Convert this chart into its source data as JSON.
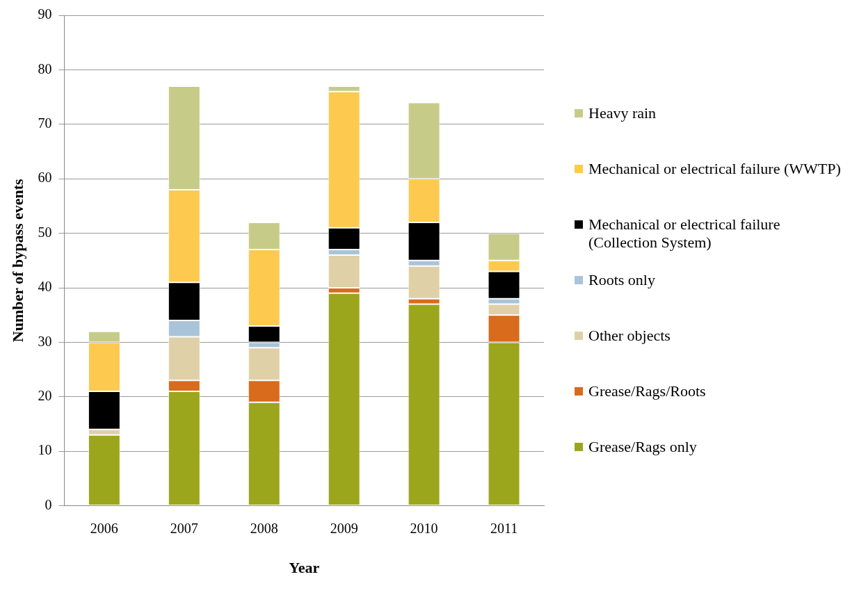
{
  "chart_data": {
    "type": "bar",
    "xlabel": "Year",
    "ylabel": "Number of bypass events",
    "categories": [
      "2006",
      "2007",
      "2008",
      "2009",
      "2010",
      "2011"
    ],
    "stacked": true,
    "ylim": [
      0,
      90
    ],
    "yticks": [
      0,
      10,
      20,
      30,
      40,
      50,
      60,
      70,
      80,
      90
    ],
    "grid": "y",
    "legend": "right",
    "series": [
      {
        "name": "Grease/Rags only",
        "color": "#9ca61c",
        "values": [
          13,
          21,
          19,
          39,
          37,
          30
        ]
      },
      {
        "name": "Grease/Rags/Roots",
        "color": "#d96b1c",
        "values": [
          0,
          2,
          4,
          1,
          1,
          5
        ]
      },
      {
        "name": "Other objects",
        "color": "#e0d0a8",
        "values": [
          1,
          8,
          6,
          6,
          6,
          2
        ]
      },
      {
        "name": "Roots only",
        "color": "#a9c4d9",
        "values": [
          0,
          3,
          1,
          1,
          1,
          1
        ]
      },
      {
        "name": "Mechanical or electrical failure (Collection System)",
        "color": "#000000",
        "values": [
          7,
          7,
          3,
          4,
          7,
          5
        ]
      },
      {
        "name": "Mechanical or electrical failure (WWTP)",
        "color": "#fdc94f",
        "values": [
          9,
          17,
          14,
          25,
          8,
          2
        ]
      },
      {
        "name": "Heavy rain",
        "color": "#c6cc88",
        "values": [
          2,
          19,
          5,
          1,
          14,
          5
        ]
      }
    ]
  }
}
